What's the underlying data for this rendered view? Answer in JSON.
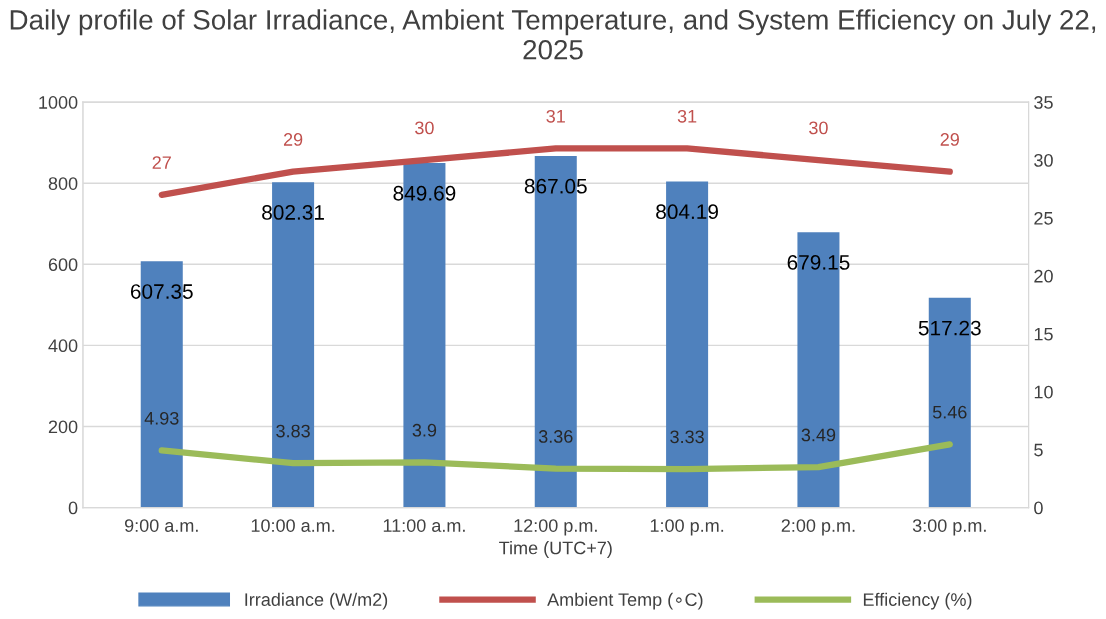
{
  "chart_data": {
    "type": "bar",
    "title": "Daily profile of Solar Irradiance, Ambient Temperature, and System Efficiency on July 22, 2025",
    "xlabel": "Time (UTC+7)",
    "categories": [
      "9:00 a.m.",
      "10:00 a.m.",
      "11:00 a.m.",
      "12:00 p.m.",
      "1:00 p.m.",
      "2:00 p.m.",
      "3:00 p.m."
    ],
    "series": [
      {
        "name": "Irradiance (W/m2)",
        "color": "#4f81bd",
        "values": [
          607.35,
          802.31,
          849.69,
          867.05,
          804.19,
          679.15,
          517.23
        ]
      },
      {
        "name": "Ambient Temp (∘C)",
        "type": "line",
        "axis": "y2",
        "color": "#c0504d",
        "values": [
          27,
          29,
          30,
          31,
          31,
          30,
          29
        ]
      },
      {
        "name": "Efficiency (%)",
        "type": "line",
        "axis": "y2",
        "color": "#9bbb59",
        "values": [
          4.93,
          3.83,
          3.9,
          3.36,
          3.33,
          3.49,
          5.46
        ]
      }
    ],
    "ylim": [
      0,
      1000
    ],
    "yticks": [
      0,
      200,
      400,
      600,
      800,
      1000
    ],
    "y2lim": [
      0,
      35
    ],
    "y2ticks": [
      0,
      5,
      10,
      15,
      20,
      25,
      30,
      35
    ],
    "data_labels": true,
    "grid": "y",
    "legend": "bottom",
    "marker": "none",
    "line_style": "solid"
  }
}
